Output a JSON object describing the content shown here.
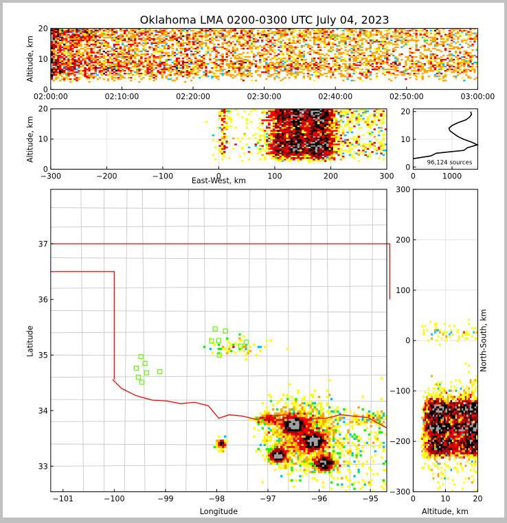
{
  "chart_data": {
    "type": "heatmap",
    "title": "Oklahoma LMA 0200-0300 UTC July 04, 2023",
    "source_count_label": "96,124 sources",
    "panels": {
      "time_height": {
        "xlabel": "",
        "ylabel": "Altitude, km",
        "xticks": [
          "02:00:00",
          "02:10:00",
          "02:20:00",
          "02:30:00",
          "02:40:00",
          "02:50:00",
          "03:00:00"
        ],
        "xlim_minutes": [
          0,
          60
        ],
        "ylim": [
          0,
          20
        ],
        "yticks": [
          0,
          10,
          20
        ]
      },
      "ew_height": {
        "xlabel": "East-West, km",
        "ylabel": "Altitude, km",
        "xlim": [
          -300,
          300
        ],
        "xticks": [
          -300,
          -200,
          -100,
          0,
          100,
          200,
          300
        ],
        "ylim": [
          0,
          20
        ],
        "yticks": [
          0,
          10,
          20
        ]
      },
      "altitude_histogram": {
        "xlim": [
          0,
          1660
        ],
        "xticks": [
          0,
          1000
        ],
        "ylim": [
          -0.8,
          21
        ],
        "yticks": [
          0,
          10,
          20
        ],
        "altitude_km": [
          3,
          4,
          5,
          6,
          7,
          8,
          9,
          10,
          11,
          12,
          13,
          14,
          15,
          16,
          17,
          18,
          19,
          20
        ],
        "sources": [
          0,
          450,
          600,
          1300,
          1400,
          1650,
          1500,
          1300,
          1150,
          1050,
          950,
          920,
          1000,
          1150,
          1350,
          1450,
          1500,
          1480
        ]
      },
      "plan_view": {
        "xlabel": "Longitude",
        "ylabel": "Latitude",
        "xlim": [
          -101.24,
          -94.68
        ],
        "ylim": [
          32.54,
          37.98
        ],
        "xticks": [
          -101,
          -100,
          -99,
          -98,
          -97,
          -96,
          -95
        ],
        "yticks": [
          33,
          34,
          35,
          36,
          37
        ],
        "stations": [
          [
            -99.48,
            34.97
          ],
          [
            -99.4,
            34.85
          ],
          [
            -99.57,
            34.76
          ],
          [
            -99.37,
            34.68
          ],
          [
            -99.11,
            34.7
          ],
          [
            -99.53,
            34.6
          ],
          [
            -99.46,
            34.51
          ],
          [
            -98.03,
            35.47
          ],
          [
            -97.96,
            35.26
          ],
          [
            -97.83,
            35.43
          ],
          [
            -97.95,
            35.0
          ],
          [
            -98.1,
            35.25
          ],
          [
            -97.53,
            35.16
          ],
          [
            -97.42,
            35.23
          ]
        ]
      },
      "ns_height": {
        "xlabel": "Altitude, km",
        "ylabel": "North-South, km",
        "xlim": [
          0,
          20
        ],
        "xticks": [
          0,
          10,
          20
        ],
        "ylim": [
          -300,
          300
        ],
        "yticks": [
          -300,
          -200,
          -100,
          0,
          100,
          200,
          300
        ]
      }
    },
    "colors": {
      "density": [
        "#0000ff",
        "#00c0ff",
        "#00ff00",
        "#ffff00",
        "#ffa500",
        "#ff0000",
        "#b00000",
        "#000000",
        "#a0a0a0"
      ],
      "border": "#ff0000",
      "county": "#c8c8c8",
      "station": "#66ff00"
    }
  }
}
